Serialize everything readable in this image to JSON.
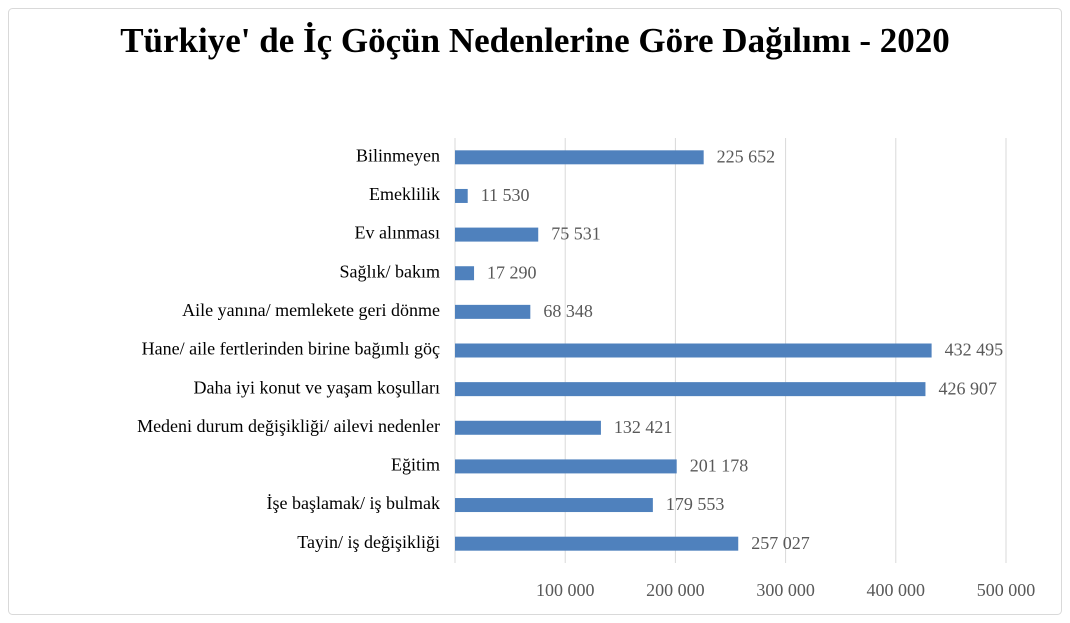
{
  "chart_data": {
    "type": "bar",
    "orientation": "horizontal",
    "title": "Türkiye' de İç Göçün Nedenlerine Göre Dağılımı - 2020",
    "categories": [
      "Bilinmeyen",
      "Emeklilik",
      "Ev alınması",
      "Sağlık/ bakım",
      "Aile yanına/ memlekete geri dönme",
      "Hane/ aile fertlerinden birine bağımlı göç",
      "Daha iyi konut ve yaşam koşulları",
      "Medeni durum değişikliği/ ailevi nedenler",
      "Eğitim",
      "İşe başlamak/ iş bulmak",
      "Tayin/ iş değişikliği"
    ],
    "values": [
      225652,
      11530,
      75531,
      17290,
      68348,
      432495,
      426907,
      132421,
      201178,
      179553,
      257027
    ],
    "value_labels": [
      "225 652",
      "11 530",
      "75 531",
      "17 290",
      "68 348",
      "432 495",
      "426 907",
      "132 421",
      "201 178",
      "179 553",
      "257 027"
    ],
    "color": "#4f81bd",
    "xlim": [
      0,
      500000
    ],
    "xticks": [
      {
        "value": 100000,
        "label": "100 000"
      },
      {
        "value": 200000,
        "label": "200 000"
      },
      {
        "value": 300000,
        "label": "300 000"
      },
      {
        "value": 400000,
        "label": "400 000"
      },
      {
        "value": 500000,
        "label": "500 000"
      }
    ],
    "grid": true
  }
}
